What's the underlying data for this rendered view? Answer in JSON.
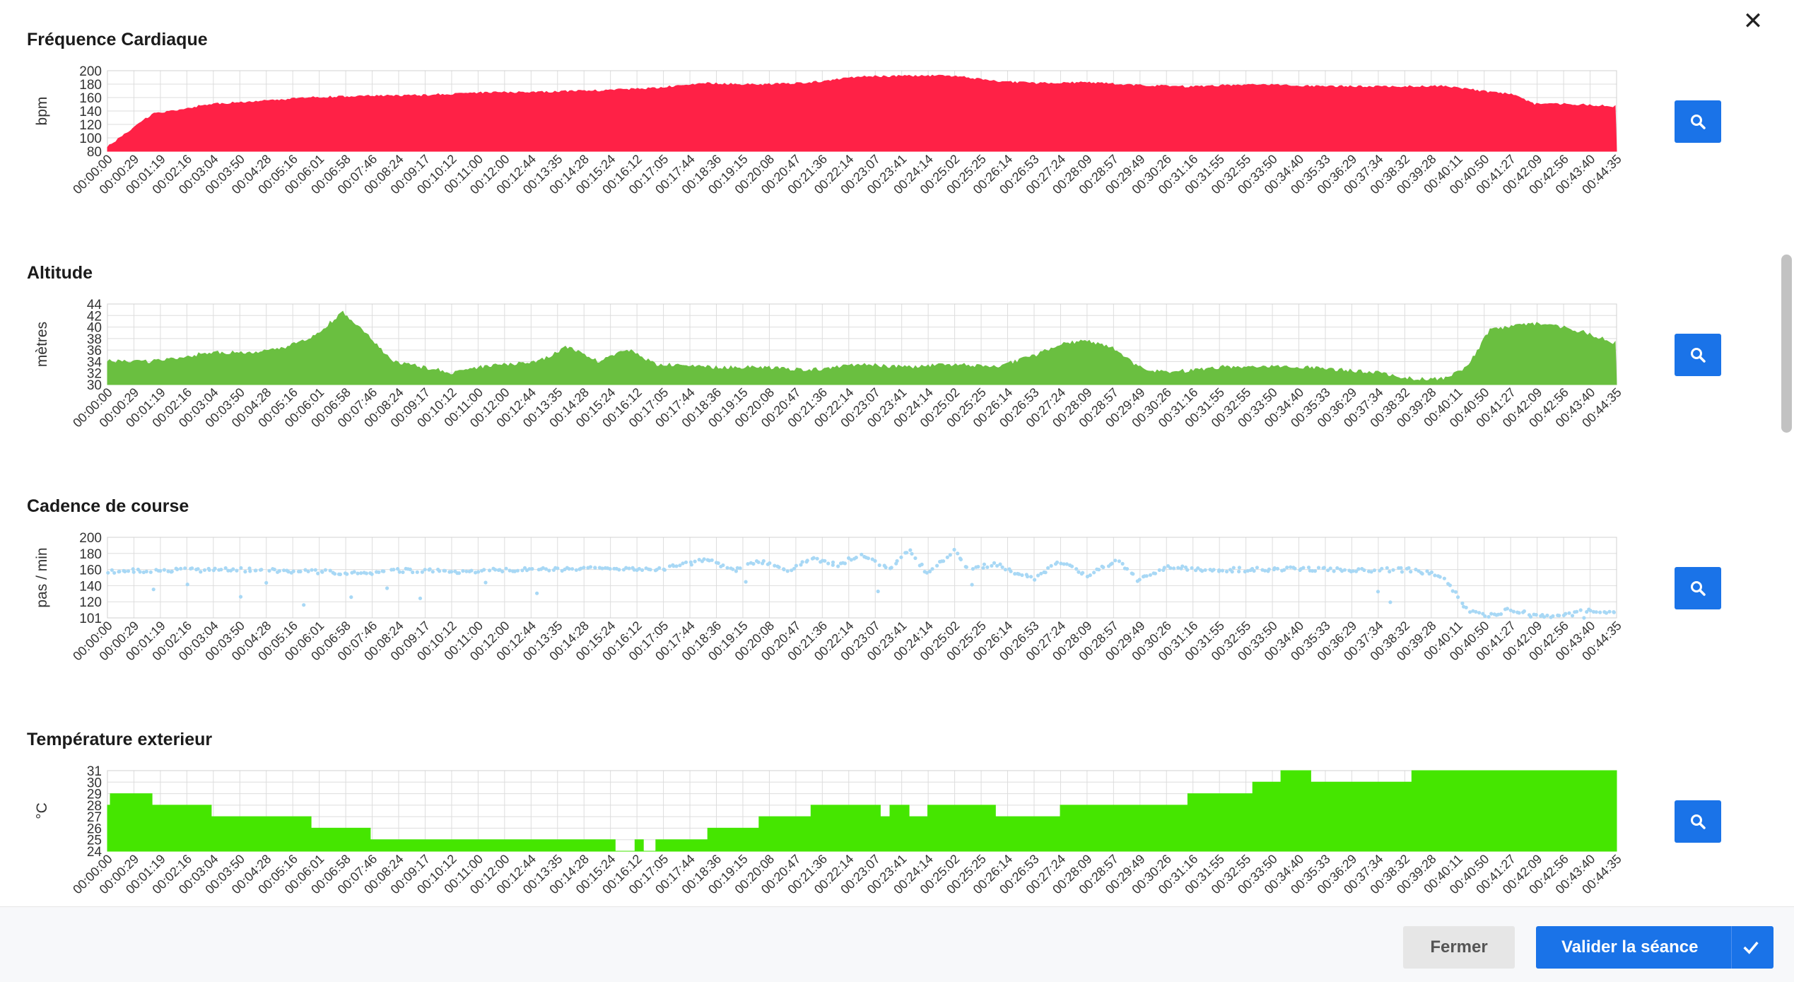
{
  "close_label": "✕",
  "footer": {
    "close_label": "Fermer",
    "validate_label": "Valider la séance"
  },
  "chart_data": [
    {
      "id": "heart",
      "type": "area",
      "title": "Fréquence Cardiaque",
      "ylabel": "bpm",
      "color": "#ff2146",
      "ylim": [
        80,
        200
      ],
      "yticks": [
        "200",
        "180",
        "160",
        "140",
        "120",
        "100",
        "80"
      ],
      "xlim_seconds": [
        0,
        2675
      ],
      "xticks": [
        "00:00:00",
        "00:00:29",
        "00:01:19",
        "00:02:16",
        "00:03:04",
        "00:03:50",
        "00:04:28",
        "00:05:16",
        "00:06:01",
        "00:06:58",
        "00:07:46",
        "00:08:24",
        "00:09:17",
        "00:10:12",
        "00:11:00",
        "00:12:00",
        "00:12:44",
        "00:13:35",
        "00:14:28",
        "00:15:24",
        "00:16:12",
        "00:17:05",
        "00:17:44",
        "00:18:36",
        "00:19:15",
        "00:20:08",
        "00:20:47",
        "00:21:36",
        "00:22:14",
        "00:23:07",
        "00:23:41",
        "00:24:14",
        "00:25:02",
        "00:25:25",
        "00:26:14",
        "00:26:53",
        "00:27:24",
        "00:28:09",
        "00:28:57",
        "00:29:49",
        "00:30:26",
        "00:31:16",
        "00:31:55",
        "00:32:55",
        "00:33:50",
        "00:34:40",
        "00:35:33",
        "00:36:29",
        "00:37:34",
        "00:38:32",
        "00:39:28",
        "00:40:11",
        "00:40:50",
        "00:41:27",
        "00:42:09",
        "00:42:56",
        "00:43:40",
        "00:44:35"
      ],
      "x": [
        "00:00:00",
        "00:01:19",
        "00:03:04",
        "00:04:28",
        "00:06:01",
        "00:07:46",
        "00:09:17",
        "00:11:00",
        "00:12:44",
        "00:14:28",
        "00:16:12",
        "00:17:44",
        "00:19:15",
        "00:20:47",
        "00:22:14",
        "00:23:41",
        "00:25:02",
        "00:26:14",
        "00:27:24",
        "00:28:57",
        "00:30:26",
        "00:31:55",
        "00:33:50",
        "00:35:33",
        "00:37:34",
        "00:39:28",
        "00:40:50",
        "00:41:27",
        "00:42:09",
        "00:42:56",
        "00:43:40",
        "00:44:35"
      ],
      "values": [
        86,
        135,
        150,
        154,
        160,
        162,
        163,
        167,
        168,
        170,
        174,
        181,
        179,
        182,
        191,
        192,
        192,
        184,
        181,
        182,
        178,
        176,
        179,
        177,
        176,
        177,
        168,
        165,
        150,
        150,
        149,
        146
      ]
    },
    {
      "id": "altitude",
      "type": "area",
      "title": "Altitude",
      "ylabel": "mètres",
      "color": "#6abf40",
      "ylim": [
        30,
        44
      ],
      "yticks": [
        "44",
        "42",
        "40",
        "38",
        "36",
        "34",
        "32",
        "30"
      ],
      "xlim_seconds": [
        0,
        2675
      ],
      "xticks": [
        "00:00:00",
        "00:00:29",
        "00:01:19",
        "00:02:16",
        "00:03:04",
        "00:03:50",
        "00:04:28",
        "00:05:16",
        "00:06:01",
        "00:06:58",
        "00:07:46",
        "00:08:24",
        "00:09:17",
        "00:10:12",
        "00:11:00",
        "00:12:00",
        "00:12:44",
        "00:13:35",
        "00:14:28",
        "00:15:24",
        "00:16:12",
        "00:17:05",
        "00:17:44",
        "00:18:36",
        "00:19:15",
        "00:20:08",
        "00:20:47",
        "00:21:36",
        "00:22:14",
        "00:23:07",
        "00:23:41",
        "00:24:14",
        "00:25:02",
        "00:25:25",
        "00:26:14",
        "00:26:53",
        "00:27:24",
        "00:28:09",
        "00:28:57",
        "00:29:49",
        "00:30:26",
        "00:31:16",
        "00:31:55",
        "00:32:55",
        "00:33:50",
        "00:34:40",
        "00:35:33",
        "00:36:29",
        "00:37:34",
        "00:38:32",
        "00:39:28",
        "00:40:11",
        "00:40:50",
        "00:41:27",
        "00:42:09",
        "00:42:56",
        "00:43:40",
        "00:44:35"
      ],
      "x": [
        "00:00:00",
        "00:01:19",
        "00:03:04",
        "00:04:28",
        "00:05:16",
        "00:06:01",
        "00:06:58",
        "00:07:46",
        "00:08:24",
        "00:09:17",
        "00:10:12",
        "00:11:00",
        "00:12:44",
        "00:13:35",
        "00:14:28",
        "00:15:24",
        "00:16:12",
        "00:17:44",
        "00:19:15",
        "00:20:47",
        "00:22:14",
        "00:23:41",
        "00:25:02",
        "00:26:14",
        "00:27:24",
        "00:28:09",
        "00:28:57",
        "00:29:49",
        "00:30:26",
        "00:31:16",
        "00:32:55",
        "00:34:40",
        "00:35:33",
        "00:36:29",
        "00:37:34",
        "00:38:32",
        "00:39:28",
        "00:40:11",
        "00:40:50",
        "00:41:27",
        "00:42:09",
        "00:42:56",
        "00:43:40",
        "00:44:35"
      ],
      "values": [
        34,
        34,
        35.5,
        35.5,
        36.5,
        38,
        42.5,
        38,
        34,
        33,
        32,
        33,
        34,
        36.5,
        34,
        36,
        33.5,
        33,
        33,
        32.5,
        33.5,
        33,
        33.5,
        33,
        35,
        37,
        37.5,
        36,
        33,
        32,
        33,
        33,
        33,
        32.5,
        32,
        31,
        31,
        33,
        39.5,
        40,
        40.5,
        40,
        39,
        37
      ]
    },
    {
      "id": "cadence",
      "type": "scatter",
      "title": "Cadence de course",
      "ylabel": "pas / min",
      "color": "#a8d8f5",
      "ylim": [
        101,
        200
      ],
      "yticks": [
        "200",
        "180",
        "160",
        "140",
        "120",
        "101"
      ],
      "xlim_seconds": [
        0,
        2675
      ],
      "xticks": [
        "00:00:00",
        "00:00:29",
        "00:01:19",
        "00:02:16",
        "00:03:04",
        "00:03:50",
        "00:04:28",
        "00:05:16",
        "00:06:01",
        "00:06:58",
        "00:07:46",
        "00:08:24",
        "00:09:17",
        "00:10:12",
        "00:11:00",
        "00:12:00",
        "00:12:44",
        "00:13:35",
        "00:14:28",
        "00:15:24",
        "00:16:12",
        "00:17:05",
        "00:17:44",
        "00:18:36",
        "00:19:15",
        "00:20:08",
        "00:20:47",
        "00:21:36",
        "00:22:14",
        "00:23:07",
        "00:23:41",
        "00:24:14",
        "00:25:02",
        "00:25:25",
        "00:26:14",
        "00:26:53",
        "00:27:24",
        "00:28:09",
        "00:28:57",
        "00:29:49",
        "00:30:26",
        "00:31:16",
        "00:31:55",
        "00:32:55",
        "00:33:50",
        "00:34:40",
        "00:35:33",
        "00:36:29",
        "00:37:34",
        "00:38:32",
        "00:39:28",
        "00:40:11",
        "00:40:50",
        "00:41:27",
        "00:42:09",
        "00:42:56",
        "00:43:40",
        "00:44:35"
      ],
      "x": [
        "00:00:00",
        "00:02:00",
        "00:04:00",
        "00:06:00",
        "00:07:46",
        "00:08:24",
        "00:10:00",
        "00:12:00",
        "00:14:28",
        "00:16:12",
        "00:17:44",
        "00:18:36",
        "00:19:15",
        "00:20:08",
        "00:20:47",
        "00:21:36",
        "00:22:14",
        "00:23:07",
        "00:23:41",
        "00:24:14",
        "00:25:02",
        "00:25:25",
        "00:26:14",
        "00:26:53",
        "00:27:24",
        "00:28:09",
        "00:28:57",
        "00:29:49",
        "00:30:26",
        "00:31:16",
        "00:32:55",
        "00:34:40",
        "00:36:29",
        "00:38:32",
        "00:39:28",
        "00:40:11",
        "00:40:50",
        "00:41:27",
        "00:42:09",
        "00:42:56",
        "00:43:40",
        "00:44:35"
      ],
      "values": [
        158,
        160,
        160,
        158,
        156,
        160,
        158,
        160,
        162,
        160,
        172,
        160,
        172,
        158,
        175,
        165,
        180,
        160,
        185,
        155,
        185,
        160,
        168,
        155,
        150,
        170,
        152,
        172,
        148,
        163,
        160,
        161,
        160,
        160,
        153,
        110,
        103,
        112,
        103,
        103,
        110,
        107
      ]
    },
    {
      "id": "temperature",
      "type": "area",
      "title": "Température exterieur",
      "ylabel": "°C",
      "color": "#45e600",
      "ylim": [
        24,
        31
      ],
      "yticks": [
        "31",
        "30",
        "29",
        "28",
        "27",
        "26",
        "25",
        "24"
      ],
      "xlim_seconds": [
        0,
        2675
      ],
      "xticks": [
        "00:00:00",
        "00:00:29",
        "00:01:19",
        "00:02:16",
        "00:03:04",
        "00:03:50",
        "00:04:28",
        "00:05:16",
        "00:06:01",
        "00:06:58",
        "00:07:46",
        "00:08:24",
        "00:09:17",
        "00:10:12",
        "00:11:00",
        "00:12:00",
        "00:12:44",
        "00:13:35",
        "00:14:28",
        "00:15:24",
        "00:16:12",
        "00:17:05",
        "00:17:44",
        "00:18:36",
        "00:19:15",
        "00:20:08",
        "00:20:47",
        "00:21:36",
        "00:22:14",
        "00:23:07",
        "00:23:41",
        "00:24:14",
        "00:25:02",
        "00:25:25",
        "00:26:14",
        "00:26:53",
        "00:27:24",
        "00:28:09",
        "00:28:57",
        "00:29:49",
        "00:30:26",
        "00:31:16",
        "00:31:55",
        "00:32:55",
        "00:33:50",
        "00:34:40",
        "00:35:33",
        "00:36:29",
        "00:37:34",
        "00:38:32",
        "00:39:28",
        "00:40:11",
        "00:40:50",
        "00:41:27",
        "00:42:09",
        "00:42:56",
        "00:43:40",
        "00:44:35"
      ],
      "x": [
        "00:00:00",
        "00:00:05",
        "00:00:29",
        "00:01:19",
        "00:02:16",
        "00:03:04",
        "00:04:28",
        "00:05:16",
        "00:06:01",
        "00:06:58",
        "00:07:46",
        "00:08:24",
        "00:12:00",
        "00:14:28",
        "00:15:00",
        "00:15:24",
        "00:15:35",
        "00:15:50",
        "00:16:12",
        "00:17:05",
        "00:17:44",
        "00:18:36",
        "00:19:15",
        "00:20:08",
        "00:20:47",
        "00:21:36",
        "00:22:14",
        "00:22:50",
        "00:23:07",
        "00:23:41",
        "00:24:14",
        "00:25:02",
        "00:25:25",
        "00:26:14",
        "00:26:53",
        "00:27:24",
        "00:28:09",
        "00:28:57",
        "00:31:16",
        "00:31:55",
        "00:32:55",
        "00:33:50",
        "00:34:40",
        "00:35:33",
        "00:37:34",
        "00:38:32",
        "00:39:28",
        "00:44:35"
      ],
      "values": [
        28,
        29,
        29,
        28,
        28,
        27,
        27,
        27,
        26,
        26,
        25,
        25,
        25,
        25,
        24,
        24,
        25,
        24,
        25,
        25,
        26,
        26,
        27,
        27,
        28,
        28,
        28,
        27,
        28,
        27,
        28,
        28,
        28,
        27,
        27,
        27,
        28,
        28,
        28,
        29,
        29,
        30,
        31,
        30,
        30,
        31,
        31,
        31
      ]
    }
  ]
}
